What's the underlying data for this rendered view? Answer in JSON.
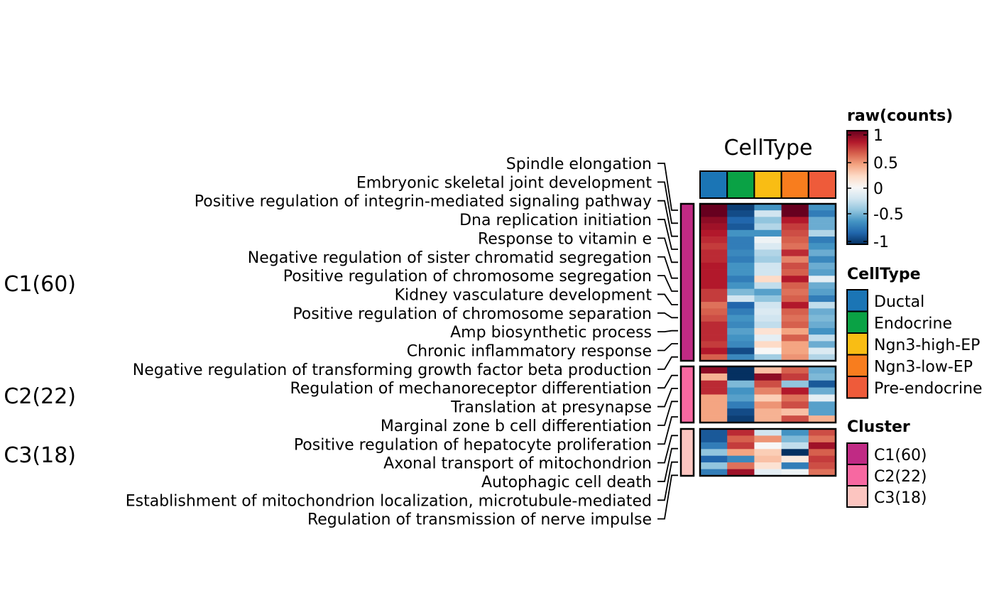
{
  "chart_data": {
    "type": "heatmap",
    "title": "CellType",
    "columns": [
      "Ductal",
      "Endocrine",
      "Ngn3-high-EP",
      "Ngn3-low-EP",
      "Pre-endocrine"
    ],
    "column_colors": [
      "#1B75B5",
      "#0AA245",
      "#F9BD14",
      "#F87D1E",
      "#EE5B3A"
    ],
    "colorbar": {
      "title": "raw(counts)",
      "ticks": [
        "1",
        "0.5",
        "0",
        "-0.5",
        "-1"
      ],
      "range": [
        -1,
        1
      ],
      "colors": [
        "#67001F",
        "#B2182B",
        "#D6604D",
        "#F4A582",
        "#FDDBC7",
        "#F7F7F7",
        "#D1E5F0",
        "#92C5DE",
        "#4393C3",
        "#2166AC",
        "#053061"
      ]
    },
    "celltype_legend": {
      "title": "CellType",
      "items": [
        "Ductal",
        "Endocrine",
        "Ngn3-high-EP",
        "Ngn3-low-EP",
        "Pre-endocrine"
      ]
    },
    "cluster_legend": {
      "title": "Cluster",
      "items": [
        "C1(60)",
        "C2(22)",
        "C3(18)"
      ],
      "colors": [
        "#C02A84",
        "#F768A1",
        "#FCC5C0"
      ]
    },
    "clusters": [
      {
        "name": "C1(60)",
        "color": "#C02A84",
        "labels": [
          "Spindle elongation",
          "Embryonic skeletal joint development",
          "Positive regulation of integrin-mediated signaling pathway",
          "Dna replication initiation",
          "Response to vitamin e",
          "Negative regulation of sister chromatid segregation",
          "Positive regulation of chromosome segregation",
          "Kidney vasculature development",
          "Positive regulation of chromosome separation",
          "Amp biosynthetic process",
          "Chronic inflammatory response",
          "Negative regulation of transforming growth factor beta production"
        ],
        "values": [
          [
            1.0,
            -0.95,
            -0.6,
            1.0,
            -0.6
          ],
          [
            1.0,
            -0.9,
            -0.2,
            1.0,
            -0.7
          ],
          [
            0.9,
            -0.8,
            -0.4,
            0.8,
            -0.5
          ],
          [
            0.85,
            -0.85,
            -0.3,
            0.7,
            -0.5
          ],
          [
            0.8,
            -0.6,
            -0.6,
            0.65,
            -0.3
          ],
          [
            0.75,
            -0.7,
            -0.05,
            0.6,
            -0.7
          ],
          [
            0.7,
            -0.7,
            -0.15,
            0.55,
            -0.6
          ],
          [
            0.75,
            -0.65,
            -0.3,
            0.75,
            -0.5
          ],
          [
            0.75,
            -0.7,
            -0.35,
            0.5,
            -0.65
          ],
          [
            0.8,
            -0.6,
            -0.2,
            0.65,
            -0.5
          ],
          [
            0.8,
            -0.6,
            -0.2,
            0.6,
            -0.55
          ],
          [
            0.8,
            -0.7,
            0.2,
            0.8,
            -0.1
          ],
          [
            0.8,
            -0.6,
            -0.25,
            0.6,
            -0.5
          ],
          [
            0.7,
            -0.45,
            -0.55,
            0.55,
            -0.55
          ],
          [
            0.7,
            -0.2,
            -0.4,
            0.6,
            -0.7
          ],
          [
            0.55,
            -0.8,
            -0.2,
            0.8,
            -0.25
          ],
          [
            0.6,
            -0.7,
            -0.15,
            0.6,
            -0.5
          ],
          [
            0.65,
            -0.6,
            -0.2,
            0.55,
            -0.45
          ],
          [
            0.75,
            -0.65,
            -0.25,
            0.6,
            -0.5
          ],
          [
            0.75,
            -0.55,
            0.15,
            0.4,
            -0.6
          ],
          [
            0.75,
            -0.6,
            -0.1,
            0.6,
            -0.25
          ],
          [
            0.7,
            -0.65,
            0.2,
            0.4,
            -0.5
          ],
          [
            0.8,
            -0.9,
            0.0,
            0.4,
            -0.15
          ],
          [
            0.6,
            -0.65,
            -0.35,
            0.45,
            -0.3
          ]
        ]
      },
      {
        "name": "C2(22)",
        "color": "#F768A1",
        "labels": [
          "Regulation of mechanoreceptor differentiation",
          "Translation at presynapse",
          "Marginal zone b cell differentiation",
          "Positive regulation of hepatocyte proliferation"
        ],
        "values": [
          [
            0.9,
            -1,
            0.3,
            0.6,
            -0.5
          ],
          [
            0.35,
            -1,
            0.9,
            0.7,
            -0.45
          ],
          [
            0.75,
            -0.45,
            0.65,
            -0.4,
            -0.85
          ],
          [
            0.75,
            -0.6,
            0.5,
            0.8,
            -0.5
          ],
          [
            0.4,
            -0.55,
            0.25,
            0.55,
            -0.1
          ],
          [
            0.4,
            -0.7,
            0.45,
            0.65,
            -0.55
          ],
          [
            0.4,
            -0.9,
            0.35,
            0.3,
            -0.55
          ],
          [
            0.4,
            -0.95,
            0.35,
            0.65,
            0.35
          ]
        ]
      },
      {
        "name": "C3(18)",
        "color": "#FCC5C0",
        "labels": [
          "Axonal transport of mitochondrion",
          "Autophagic cell death",
          "Establishment of mitochondrion localization, microtubule-mediated",
          "Regulation of transmission of nerve impulse"
        ],
        "values": [
          [
            -0.85,
            0.75,
            -0.2,
            -0.6,
            0.65
          ],
          [
            -0.85,
            0.6,
            0.45,
            -0.45,
            0.55
          ],
          [
            -0.7,
            0.7,
            0.0,
            -0.25,
            0.85
          ],
          [
            -0.4,
            0.4,
            0.25,
            -1,
            0.6
          ],
          [
            -0.8,
            -0.65,
            0.3,
            0.1,
            0.7
          ],
          [
            -0.4,
            0.55,
            0.15,
            -0.7,
            0.65
          ],
          [
            -0.7,
            0.85,
            -0.1,
            -0.05,
            0.55
          ]
        ]
      }
    ]
  }
}
